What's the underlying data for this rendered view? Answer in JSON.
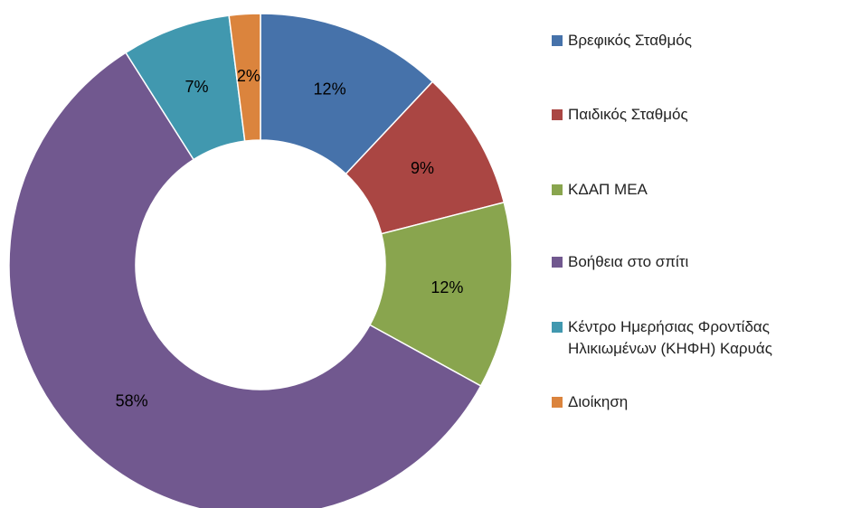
{
  "chart_data": {
    "type": "donut",
    "categories": [
      "Βρεφικός Σταθμός",
      "Παιδικός Σταθμός",
      "ΚΔΑΠ ΜΕΑ",
      "Βοήθεια στο σπίτι",
      "Κέντρο Ημερήσιας Φροντίδας Ηλικιωμένων (ΚΗΦΗ) Καρυάς",
      "Διοίκηση"
    ],
    "values": [
      12,
      9,
      12,
      58,
      7,
      2
    ],
    "value_labels": [
      "12%",
      "9%",
      "12%",
      "58%",
      "7%",
      "2%"
    ],
    "colors": [
      "#4672aa",
      "#aa4643",
      "#89a54e",
      "#71588f",
      "#4198af",
      "#db843d"
    ],
    "legend": "right"
  }
}
